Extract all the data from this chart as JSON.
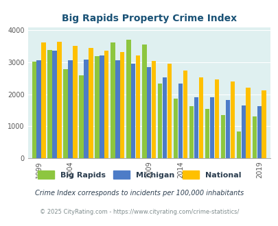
{
  "title": "Big Rapids Property Crime Index",
  "years": [
    1999,
    2000,
    2004,
    2005,
    2006,
    2007,
    2008,
    2009,
    2013,
    2014,
    2015,
    2016,
    2017,
    2018,
    2019
  ],
  "big_rapids": [
    3020,
    3380,
    2780,
    2590,
    3200,
    3630,
    3710,
    3560,
    2330,
    1870,
    1620,
    1540,
    1360,
    830,
    1300
  ],
  "michigan": [
    3060,
    3360,
    3060,
    3090,
    3220,
    3070,
    2960,
    2850,
    2530,
    2330,
    1900,
    1900,
    1820,
    1660,
    1620
  ],
  "national": [
    3620,
    3640,
    3520,
    3440,
    3360,
    3320,
    3220,
    3050,
    2960,
    2750,
    2520,
    2470,
    2400,
    2200,
    2110
  ],
  "bar_colors": {
    "big_rapids": "#8dc63f",
    "michigan": "#4d7cc7",
    "national": "#ffc000"
  },
  "ylabel_ticks": [
    0,
    1000,
    2000,
    3000,
    4000
  ],
  "ylim": [
    0,
    4100
  ],
  "xtick_year_labels": [
    "1999",
    "2004",
    "2009",
    "2014",
    "2019"
  ],
  "xtick_years": [
    1999,
    2004,
    2009,
    2014,
    2019
  ],
  "bg_color": "#dff0f0",
  "footnote1": "Crime Index corresponds to incidents per 100,000 inhabitants",
  "footnote2": "© 2025 CityRating.com - https://www.cityrating.com/crime-statistics/",
  "title_color": "#1a5276",
  "footnote1_color": "#2c3e50",
  "footnote2_color": "#7f8c8d",
  "legend_labels": [
    "Big Rapids",
    "Michigan",
    "National"
  ]
}
